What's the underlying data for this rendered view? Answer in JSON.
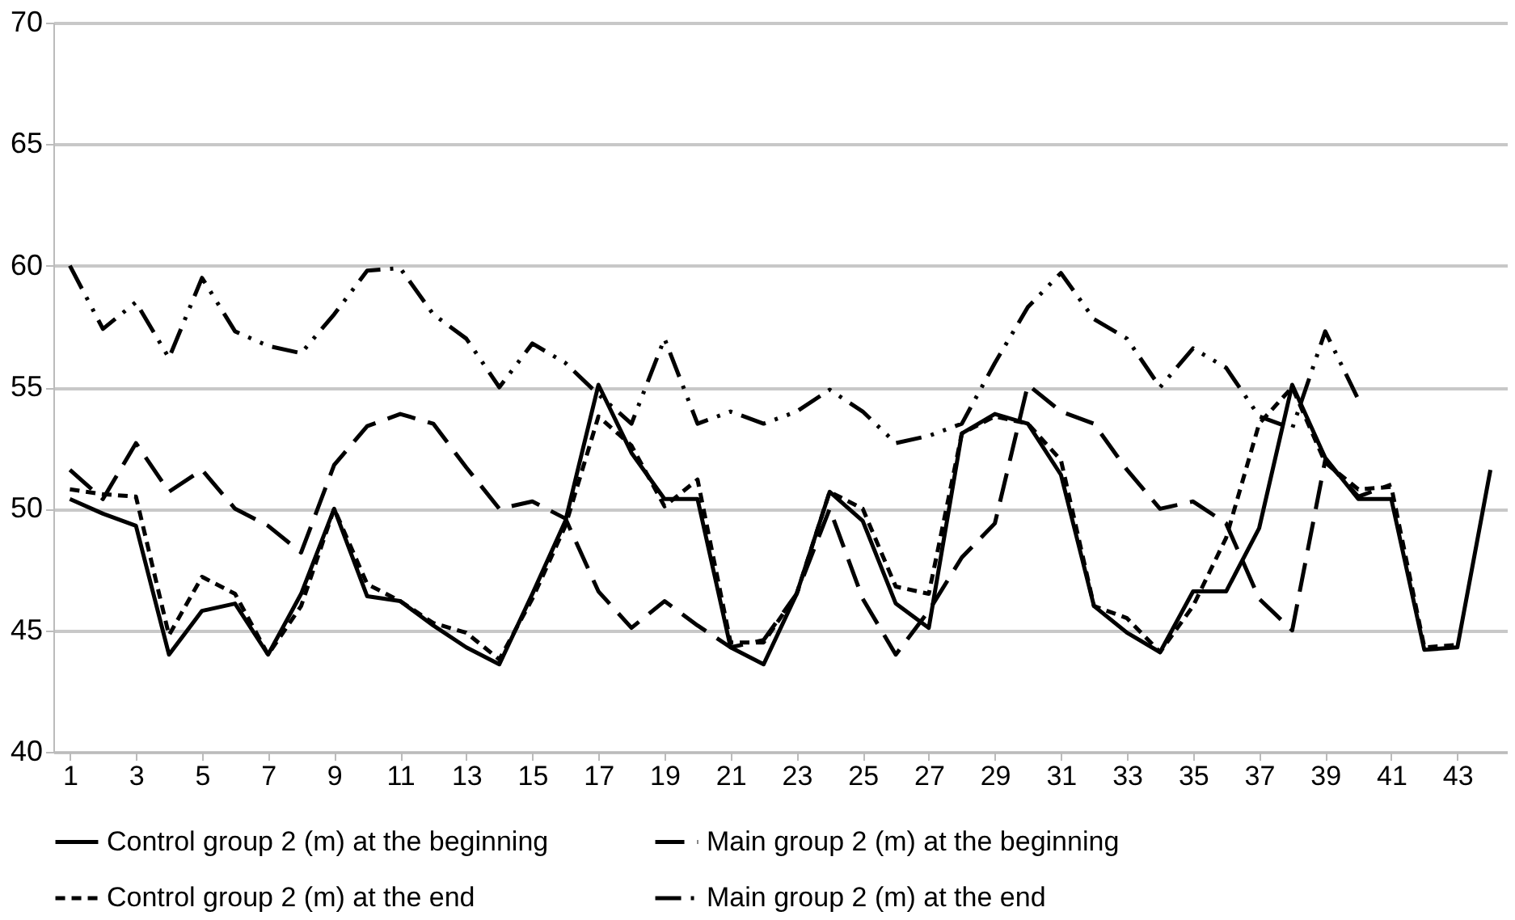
{
  "chart_data": {
    "type": "line",
    "x": [
      1,
      2,
      3,
      4,
      5,
      6,
      7,
      8,
      9,
      10,
      11,
      12,
      13,
      14,
      15,
      16,
      17,
      18,
      19,
      20,
      21,
      22,
      23,
      24,
      25,
      26,
      27,
      28,
      29,
      30,
      31,
      32,
      33,
      34,
      35,
      36,
      37,
      38,
      39,
      40,
      41,
      42,
      43,
      44
    ],
    "xlim": [
      0.5,
      44.5
    ],
    "xticks": [
      1,
      3,
      5,
      7,
      9,
      11,
      13,
      15,
      17,
      19,
      21,
      23,
      25,
      27,
      29,
      31,
      33,
      35,
      37,
      39,
      41,
      43
    ],
    "ylim": [
      40,
      70
    ],
    "yticks": [
      40,
      45,
      50,
      55,
      60,
      65,
      70
    ],
    "grid": "y",
    "legend": "bottom",
    "marker": "none",
    "series": [
      {
        "name": "Control group 2 (m) at the beginning",
        "color": "#000000",
        "line_style": "solid",
        "values": [
          50.4,
          49.8,
          49.3,
          44.0,
          45.8,
          46.1,
          44.0,
          46.5,
          50.0,
          46.4,
          46.2,
          45.2,
          44.3,
          43.6,
          46.5,
          49.5,
          55.1,
          52.3,
          50.4,
          50.4,
          44.3,
          43.6,
          46.5,
          50.7,
          49.5,
          46.1,
          45.1,
          53.1,
          53.9,
          53.5,
          51.4,
          46.0,
          44.9,
          44.1,
          46.6,
          46.6,
          49.2,
          55.1,
          52.1,
          50.4,
          50.4,
          44.2,
          44.3,
          51.6
        ]
      },
      {
        "name": "Main group 2 (m) at the beginning",
        "color": "#000000",
        "line_style": "longdash",
        "values": [
          51.6,
          50.4,
          52.7,
          50.7,
          51.6,
          50.0,
          49.3,
          48.2,
          51.8,
          53.4,
          53.9,
          53.5,
          51.7,
          50.0,
          50.3,
          49.6,
          46.6,
          45.1,
          46.2,
          45.2,
          44.3,
          44.6,
          46.5,
          50.0,
          46.3,
          44.0,
          45.8,
          48.0,
          49.4,
          55.1,
          54.0,
          53.5,
          51.6,
          50.0,
          50.3,
          49.4,
          46.3,
          45.0,
          52.0,
          50.5,
          51.0,
          null,
          null,
          null
        ]
      },
      {
        "name": "Control group 2 (m) at the end",
        "color": "#000000",
        "line_style": "dashed",
        "values": [
          50.8,
          50.6,
          50.5,
          44.8,
          47.2,
          46.5,
          44.0,
          46.0,
          50.0,
          46.9,
          46.2,
          45.3,
          44.9,
          43.8,
          46.3,
          49.3,
          53.8,
          52.6,
          50.1,
          51.2,
          44.5,
          44.5,
          46.5,
          50.7,
          50.0,
          46.8,
          46.5,
          53.1,
          53.8,
          53.5,
          52.0,
          46.0,
          45.5,
          44.1,
          46.0,
          48.8,
          53.5,
          55.0,
          51.9,
          50.8,
          50.9,
          44.3,
          44.4,
          null
        ]
      },
      {
        "name": "Main group 2 (m) at the end",
        "color": "#000000",
        "line_style": "dashdot",
        "values": [
          60.0,
          57.4,
          58.5,
          56.2,
          59.5,
          57.3,
          56.7,
          56.4,
          58.0,
          59.8,
          59.9,
          58.0,
          57.0,
          55.0,
          56.8,
          56.0,
          54.7,
          53.5,
          57.0,
          53.5,
          54.0,
          53.5,
          54.0,
          54.9,
          54.0,
          52.7,
          53.0,
          53.5,
          56.0,
          58.3,
          59.7,
          57.8,
          57.0,
          55.0,
          56.6,
          55.8,
          53.8,
          53.3,
          57.3,
          54.5,
          null,
          null,
          null,
          null
        ]
      }
    ]
  }
}
